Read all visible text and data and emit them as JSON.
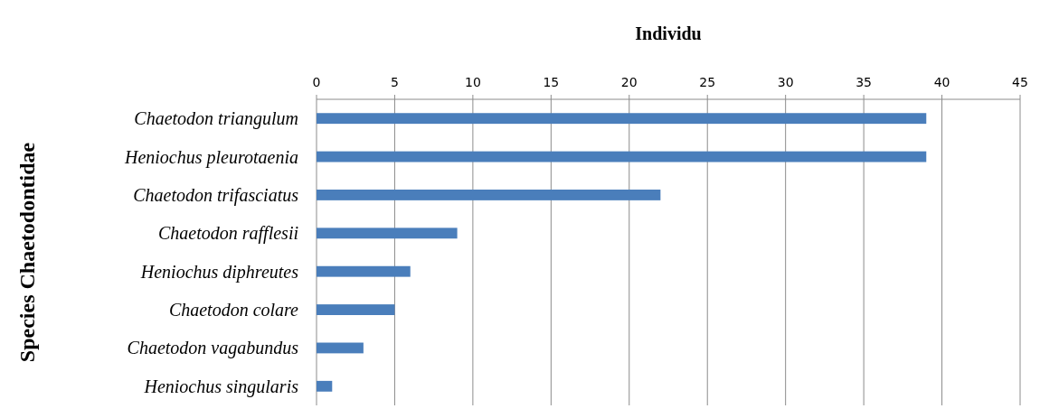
{
  "chart_data": {
    "type": "bar",
    "orientation": "horizontal",
    "title": "Individu",
    "ylabel": "Species Chaetodontidae",
    "categories": [
      "Chaetodon triangulum",
      "Heniochus pleurotaenia",
      "Chaetodon trifasciatus",
      "Chaetodon rafflesii",
      "Heniochus diphreutes",
      "Chaetodon colare",
      "Chaetodon vagabundus",
      "Heniochus singularis"
    ],
    "values": [
      39,
      39,
      22,
      9,
      6,
      5,
      3,
      1
    ],
    "color": "#4a7ebb",
    "xlim": [
      0,
      45
    ],
    "xticks": [
      0,
      5,
      10,
      15,
      20,
      25,
      30,
      35,
      40,
      45
    ],
    "grid": "x"
  }
}
